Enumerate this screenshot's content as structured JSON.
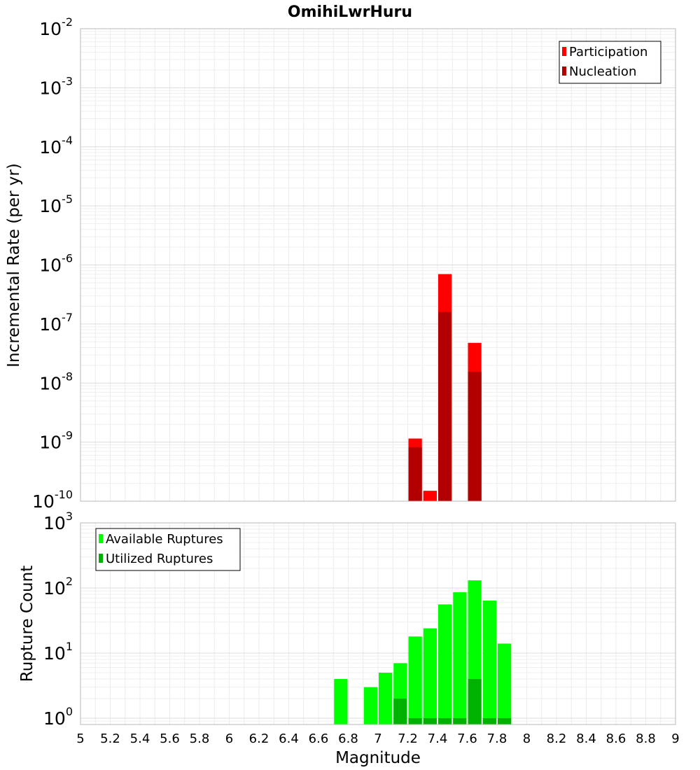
{
  "chart_data": [
    {
      "type": "bar",
      "title": "OmihiLwrHuru",
      "ylabel": "Incremental Rate (per yr)",
      "xlabel": "",
      "y_scale": "log",
      "ylim": [
        1e-10,
        0.01
      ],
      "xlim": [
        5,
        9
      ],
      "yticks": [
        {
          "base": "10",
          "exp": "-2",
          "value": 0.01
        },
        {
          "base": "10",
          "exp": "-3",
          "value": 0.001
        },
        {
          "base": "10",
          "exp": "-4",
          "value": 0.0001
        },
        {
          "base": "10",
          "exp": "-5",
          "value": 1e-05
        },
        {
          "base": "10",
          "exp": "-6",
          "value": 1e-06
        },
        {
          "base": "10",
          "exp": "-7",
          "value": 1e-07
        },
        {
          "base": "10",
          "exp": "-8",
          "value": 1e-08
        },
        {
          "base": "10",
          "exp": "-9",
          "value": 1e-09
        },
        {
          "base": "10",
          "exp": "-10",
          "value": 1e-10
        }
      ],
      "legend_position": "top-right",
      "grid": true,
      "series": [
        {
          "name": "Participation",
          "color": "#ff0000",
          "x": [
            7.25,
            7.35,
            7.45,
            7.65
          ],
          "values": [
            1.15e-09,
            1.5e-10,
            7e-07,
            4.8e-08
          ]
        },
        {
          "name": "Nucleation",
          "color": "#b20000",
          "x": [
            7.25,
            7.45,
            7.65
          ],
          "values": [
            8.2e-10,
            1.6e-07,
            1.55e-08
          ]
        }
      ]
    },
    {
      "type": "bar",
      "title": "",
      "ylabel": "Rupture Count",
      "xlabel": "Magnitude",
      "y_scale": "log",
      "ylim": [
        0.8,
        1000
      ],
      "xlim": [
        5,
        9
      ],
      "xticks": [
        "5",
        "5.2",
        "5.4",
        "5.6",
        "5.8",
        "6",
        "6.2",
        "6.4",
        "6.6",
        "6.8",
        "7",
        "7.2",
        "7.4",
        "7.6",
        "7.8",
        "8",
        "8.2",
        "8.4",
        "8.6",
        "8.8",
        "9"
      ],
      "yticks": [
        {
          "base": "10",
          "exp": "3",
          "value": 1000
        },
        {
          "base": "10",
          "exp": "2",
          "value": 100
        },
        {
          "base": "10",
          "exp": "1",
          "value": 10
        },
        {
          "base": "10",
          "exp": "0",
          "value": 1
        }
      ],
      "legend_position": "top-left",
      "grid": true,
      "series": [
        {
          "name": "Available Ruptures",
          "color": "#00ff00",
          "x": [
            6.75,
            6.95,
            7.05,
            7.15,
            7.25,
            7.35,
            7.45,
            7.55,
            7.65,
            7.75,
            7.85
          ],
          "values": [
            4,
            3,
            5,
            7,
            18,
            24,
            56,
            86,
            131,
            64,
            14
          ]
        },
        {
          "name": "Utilized Ruptures",
          "color": "#00b200",
          "x": [
            7.15,
            7.25,
            7.35,
            7.45,
            7.55,
            7.65,
            7.75,
            7.85
          ],
          "values": [
            2,
            1,
            1,
            1,
            1,
            4,
            1,
            1
          ]
        }
      ]
    }
  ]
}
